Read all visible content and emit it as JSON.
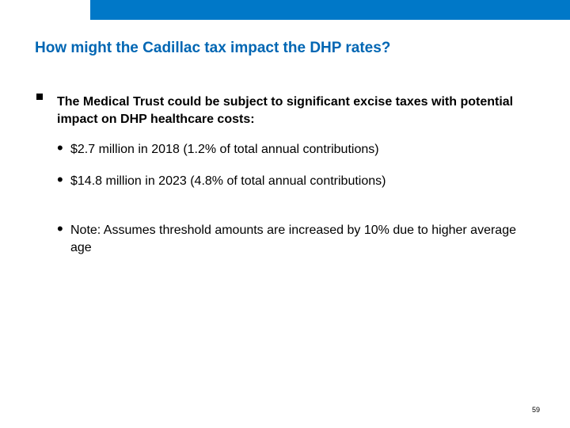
{
  "slide": {
    "title": "How might the Cadillac tax impact the DHP rates?",
    "main_point": "The Medical Trust could be subject to significant excise taxes with potential impact on DHP healthcare costs:",
    "sub_points": [
      "$2.7 million in 2018 (1.2% of total annual contributions)",
      "$14.8 million in 2023 (4.8% of total annual contributions)",
      "Note: Assumes threshold amounts are increased by 10% due to higher average age"
    ],
    "page_number": "59"
  },
  "colors": {
    "accent_bar": "#0078c8",
    "title": "#0066b3"
  },
  "icons": {
    "main_bullet": "square-bullet-icon",
    "sub_bullet": "round-bullet-icon"
  }
}
